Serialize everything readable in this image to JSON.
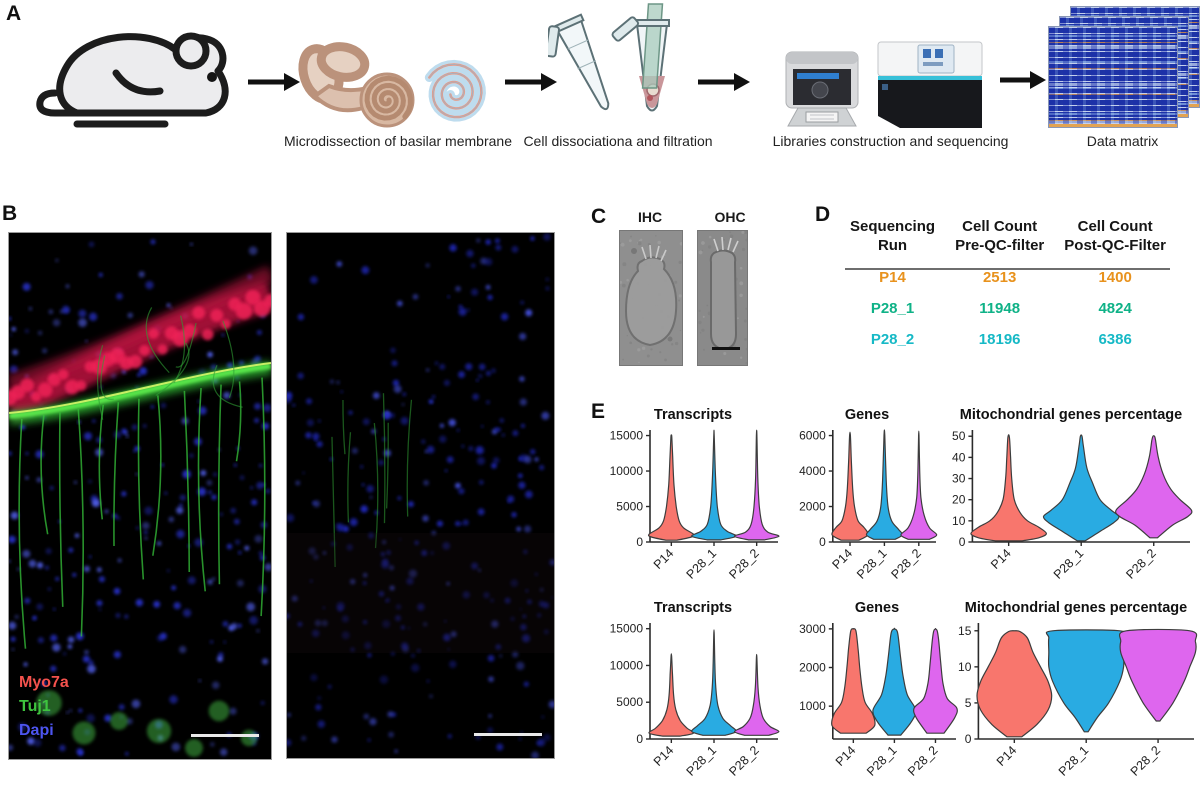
{
  "panelA": {
    "label": "A",
    "captions": [
      "Microdissection of basilar membrane",
      "Cell dissociationa and filtration",
      "Libraries construction and sequencing",
      "Data matrix"
    ]
  },
  "panelB": {
    "label": "B",
    "legend": [
      {
        "text": "Myo7a",
        "color": "#f4524d"
      },
      {
        "text": "Tuj1",
        "color": "#3ec43e"
      },
      {
        "text": "Dapi",
        "color": "#4d55f0"
      }
    ]
  },
  "panelC": {
    "label": "C",
    "image_labels": [
      "IHC",
      "OHC"
    ]
  },
  "panelD": {
    "label": "D",
    "headers": [
      {
        "l1": "Sequencing",
        "l2": "Run"
      },
      {
        "l1": "Cell Count",
        "l2": "Pre-QC-filter"
      },
      {
        "l1": "Cell Count",
        "l2": "Post-QC-Filter"
      }
    ],
    "rows": [
      {
        "run": "P14",
        "pre": "2513",
        "post": "1400",
        "color": "#e8921d"
      },
      {
        "run": "P28_1",
        "pre": "11948",
        "post": "4824",
        "color": "#0fb287"
      },
      {
        "run": "P28_2",
        "pre": "18196",
        "post": "6386",
        "color": "#16b9c6"
      }
    ]
  },
  "panelE": {
    "label": "E"
  },
  "chart_data": [
    {
      "type": "violin",
      "title": "Transcripts",
      "row": "top",
      "ylim": [
        0,
        15500
      ],
      "yticks": [
        0,
        5000,
        10000,
        15000
      ],
      "categories": [
        "P14",
        "P28_1",
        "P28_2"
      ],
      "colors": [
        "#f8766d",
        "#29abe2",
        "#de66ee"
      ],
      "series": [
        {
          "name": "P14",
          "profile": [
            [
              250,
              0.25
            ],
            [
              700,
              0.9
            ],
            [
              1100,
              1.0
            ],
            [
              2000,
              0.55
            ],
            [
              3000,
              0.35
            ],
            [
              5000,
              0.22
            ],
            [
              8000,
              0.12
            ],
            [
              12000,
              0.06
            ],
            [
              14800,
              0.02
            ],
            [
              15000,
              0.0
            ]
          ]
        },
        {
          "name": "P28_1",
          "profile": [
            [
              300,
              0.3
            ],
            [
              800,
              1.0
            ],
            [
              1500,
              0.6
            ],
            [
              2500,
              0.3
            ],
            [
              5000,
              0.15
            ],
            [
              9000,
              0.07
            ],
            [
              15000,
              0.01
            ]
          ]
        },
        {
          "name": "P28_2",
          "profile": [
            [
              300,
              0.35
            ],
            [
              800,
              1.0
            ],
            [
              1400,
              0.5
            ],
            [
              2500,
              0.25
            ],
            [
              5000,
              0.12
            ],
            [
              9000,
              0.05
            ],
            [
              15000,
              0.01
            ]
          ]
        }
      ]
    },
    {
      "type": "violin",
      "title": "Genes",
      "row": "top",
      "ylim": [
        0,
        6200
      ],
      "yticks": [
        0,
        2000,
        4000,
        6000
      ],
      "categories": [
        "P14",
        "P28_1",
        "P28_2"
      ],
      "colors": [
        "#f8766d",
        "#29abe2",
        "#de66ee"
      ],
      "series": [
        {
          "name": "P14",
          "profile": [
            [
              100,
              0.5
            ],
            [
              400,
              1.0
            ],
            [
              800,
              0.8
            ],
            [
              1200,
              0.45
            ],
            [
              2000,
              0.25
            ],
            [
              3000,
              0.15
            ],
            [
              4500,
              0.08
            ],
            [
              6000,
              0.02
            ]
          ]
        },
        {
          "name": "P28_1",
          "profile": [
            [
              150,
              0.6
            ],
            [
              400,
              1.0
            ],
            [
              700,
              0.8
            ],
            [
              1200,
              0.4
            ],
            [
              2000,
              0.2
            ],
            [
              3500,
              0.1
            ],
            [
              6000,
              0.02
            ]
          ]
        },
        {
          "name": "P28_2",
          "profile": [
            [
              150,
              0.6
            ],
            [
              400,
              1.0
            ],
            [
              800,
              0.6
            ],
            [
              1500,
              0.3
            ],
            [
              2500,
              0.12
            ],
            [
              4000,
              0.05
            ],
            [
              6000,
              0.01
            ]
          ]
        }
      ]
    },
    {
      "type": "violin",
      "title": "Mitochondrial genes percentage",
      "row": "top",
      "ylim": [
        0,
        52
      ],
      "yticks": [
        0,
        10,
        20,
        30,
        40,
        50
      ],
      "categories": [
        "P14",
        "P28_1",
        "P28_2"
      ],
      "colors": [
        "#f8766d",
        "#29abe2",
        "#de66ee"
      ],
      "series": [
        {
          "name": "P14",
          "profile": [
            [
              0.5,
              0.35
            ],
            [
              2,
              0.8
            ],
            [
              4,
              1.0
            ],
            [
              7,
              0.8
            ],
            [
              10,
              0.5
            ],
            [
              14,
              0.3
            ],
            [
              20,
              0.15
            ],
            [
              30,
              0.08
            ],
            [
              40,
              0.05
            ],
            [
              49.5,
              0.02
            ]
          ]
        },
        {
          "name": "P28_1",
          "profile": [
            [
              0.5,
              0.1
            ],
            [
              5,
              0.5
            ],
            [
              9,
              0.85
            ],
            [
              12,
              1.0
            ],
            [
              15,
              0.8
            ],
            [
              20,
              0.5
            ],
            [
              28,
              0.3
            ],
            [
              35,
              0.15
            ],
            [
              45,
              0.06
            ],
            [
              50,
              0.02
            ]
          ]
        },
        {
          "name": "P28_2",
          "profile": [
            [
              2,
              0.1
            ],
            [
              8,
              0.5
            ],
            [
              12,
              0.9
            ],
            [
              15,
              1.0
            ],
            [
              20,
              0.7
            ],
            [
              25,
              0.45
            ],
            [
              32,
              0.25
            ],
            [
              40,
              0.12
            ],
            [
              48,
              0.05
            ],
            [
              50,
              0.02
            ]
          ]
        }
      ]
    },
    {
      "type": "violin",
      "title": "Transcripts",
      "row": "bottom",
      "ylim": [
        0,
        15500
      ],
      "yticks": [
        0,
        5000,
        10000,
        15000
      ],
      "categories": [
        "P14",
        "P28_1",
        "P28_2"
      ],
      "colors": [
        "#f8766d",
        "#29abe2",
        "#de66ee"
      ],
      "series": [
        {
          "name": "P14",
          "profile": [
            [
              400,
              0.4
            ],
            [
              800,
              1.0
            ],
            [
              1500,
              0.7
            ],
            [
              2500,
              0.4
            ],
            [
              4000,
              0.2
            ],
            [
              6000,
              0.1
            ],
            [
              9000,
              0.05
            ],
            [
              11300,
              0.01
            ]
          ]
        },
        {
          "name": "P28_1",
          "profile": [
            [
              500,
              0.5
            ],
            [
              1000,
              1.0
            ],
            [
              1800,
              0.75
            ],
            [
              2800,
              0.4
            ],
            [
              4500,
              0.18
            ],
            [
              7000,
              0.08
            ],
            [
              10000,
              0.04
            ],
            [
              14300,
              0.01
            ]
          ]
        },
        {
          "name": "P28_2",
          "profile": [
            [
              500,
              0.55
            ],
            [
              1000,
              1.0
            ],
            [
              1700,
              0.6
            ],
            [
              2800,
              0.3
            ],
            [
              4500,
              0.15
            ],
            [
              7000,
              0.06
            ],
            [
              11000,
              0.01
            ]
          ]
        }
      ]
    },
    {
      "type": "violin",
      "title": "Genes",
      "row": "bottom",
      "ylim": [
        150,
        3100
      ],
      "yticks": [
        1000,
        2000,
        3000
      ],
      "categories": [
        "P14",
        "P28_1",
        "P28_2"
      ],
      "colors": [
        "#f8766d",
        "#29abe2",
        "#de66ee"
      ],
      "series": [
        {
          "name": "P14",
          "profile": [
            [
              300,
              0.6
            ],
            [
              500,
              1.0
            ],
            [
              800,
              0.9
            ],
            [
              1100,
              0.55
            ],
            [
              1500,
              0.4
            ],
            [
              2000,
              0.3
            ],
            [
              2500,
              0.22
            ],
            [
              2950,
              0.12
            ],
            [
              3000,
              0.0
            ]
          ]
        },
        {
          "name": "P28_1",
          "profile": [
            [
              250,
              0.3
            ],
            [
              600,
              0.8
            ],
            [
              900,
              1.0
            ],
            [
              1300,
              0.6
            ],
            [
              1800,
              0.4
            ],
            [
              2300,
              0.28
            ],
            [
              2900,
              0.15
            ],
            [
              3000,
              0.0
            ]
          ]
        },
        {
          "name": "P28_2",
          "profile": [
            [
              300,
              0.4
            ],
            [
              700,
              0.9
            ],
            [
              950,
              1.0
            ],
            [
              1200,
              0.55
            ],
            [
              1600,
              0.35
            ],
            [
              2100,
              0.25
            ],
            [
              2700,
              0.15
            ],
            [
              2950,
              0.08
            ],
            [
              3000,
              0.0
            ]
          ]
        }
      ]
    },
    {
      "type": "violin",
      "title": "Mitochondrial genes percentage",
      "row": "bottom",
      "ylim": [
        0,
        15.8
      ],
      "yticks": [
        0,
        5,
        10,
        15
      ],
      "categories": [
        "P14",
        "P28_1",
        "P28_2"
      ],
      "colors": [
        "#f8766d",
        "#29abe2",
        "#de66ee"
      ],
      "series": [
        {
          "name": "P14",
          "profile": [
            [
              0.3,
              0.2
            ],
            [
              2,
              0.6
            ],
            [
              4,
              0.9
            ],
            [
              6,
              1.0
            ],
            [
              8,
              0.9
            ],
            [
              10,
              0.7
            ],
            [
              12,
              0.5
            ],
            [
              14,
              0.35
            ],
            [
              14.9,
              0.15
            ],
            [
              15,
              0.0
            ]
          ]
        },
        {
          "name": "P28_1",
          "profile": [
            [
              1,
              0.05
            ],
            [
              3,
              0.3
            ],
            [
              5,
              0.6
            ],
            [
              8,
              0.9
            ],
            [
              10,
              1.0
            ],
            [
              12,
              1.0
            ],
            [
              14,
              1.0
            ],
            [
              15,
              0.9
            ]
          ]
        },
        {
          "name": "P28_2",
          "profile": [
            [
              2.5,
              0.05
            ],
            [
              5,
              0.4
            ],
            [
              8,
              0.7
            ],
            [
              10,
              0.85
            ],
            [
              12,
              1.0
            ],
            [
              13.5,
              1.0
            ],
            [
              15,
              0.85
            ]
          ]
        }
      ]
    }
  ]
}
